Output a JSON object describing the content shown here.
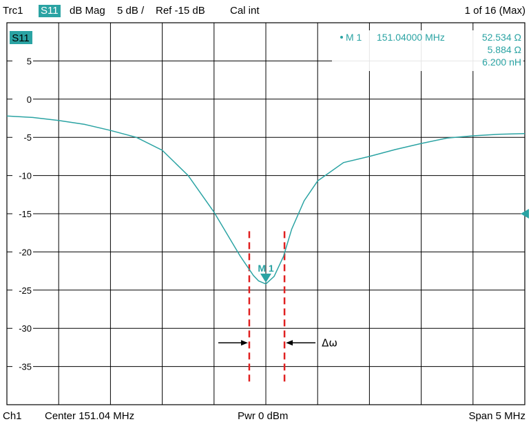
{
  "header": {
    "trace": "Trc1",
    "param": "S11",
    "format": "dB Mag",
    "scale": "5 dB /",
    "ref": "Ref -15 dB",
    "cal": "Cal int",
    "count": "1 of 16 (Max)"
  },
  "footer": {
    "channel": "Ch1",
    "center": "Center  151.04 MHz",
    "power": "Pwr  0 dBm",
    "span": "Span  5 MHz"
  },
  "colors": {
    "trace": "#2aa3a3",
    "grid": "#000000",
    "annotation_lines": "#e02020"
  },
  "chart_data": {
    "type": "line",
    "trace_label": "S11",
    "xlabel": "",
    "ylabel": "",
    "xlim": [
      148.54,
      153.54
    ],
    "ylim": [
      -40,
      10
    ],
    "grid": true,
    "y_ticks": [
      5,
      0,
      -5,
      -10,
      -15,
      -20,
      -25,
      -30,
      -35
    ],
    "y_tick_labels": [
      "5",
      "0",
      "-5",
      "-10",
      "-15",
      "-20",
      "-25",
      "-30",
      "-35"
    ],
    "x_unit": "MHz",
    "reference_level": -15,
    "series": [
      {
        "name": "S11",
        "x": [
          148.54,
          148.79,
          149.04,
          149.29,
          149.54,
          149.79,
          150.04,
          150.29,
          150.54,
          150.79,
          150.92,
          150.97,
          151.04,
          151.12,
          151.21,
          151.29,
          151.41,
          151.54,
          151.79,
          152.04,
          152.29,
          152.54,
          152.79,
          153.04,
          153.29,
          153.54
        ],
        "y": [
          -2.2,
          -2.4,
          -2.8,
          -3.3,
          -4.1,
          -5.0,
          -6.7,
          -10.0,
          -14.8,
          -20.5,
          -23.1,
          -23.8,
          -24.2,
          -23.2,
          -20.6,
          -17.0,
          -13.3,
          -10.7,
          -8.3,
          -7.5,
          -6.6,
          -5.8,
          -5.1,
          -4.8,
          -4.6,
          -4.5
        ]
      }
    ],
    "marker": {
      "label": "M 1",
      "readout_label": "M 1",
      "frequency": "151.04000 MHz",
      "x": 151.04,
      "y": -24.2,
      "values": [
        "52.534  Ω",
        "5.884  Ω",
        "6.200 nH"
      ]
    },
    "bandwidth_lines_x": [
      150.88,
      151.22
    ],
    "bandwidth_level": -20,
    "annotation": "Δω"
  }
}
